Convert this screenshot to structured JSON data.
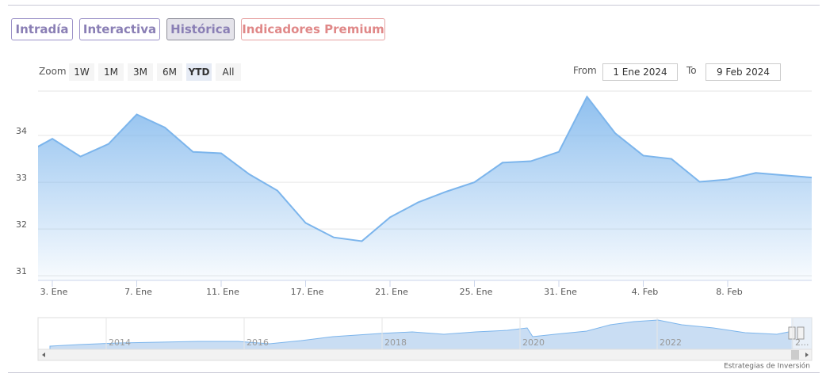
{
  "tabs": [
    "Intradía",
    "Interactiva",
    "Histórica",
    "Indicadores Premium"
  ],
  "zoom": {
    "label": "Zoom",
    "buttons": [
      "1W",
      "1M",
      "3M",
      "6M",
      "YTD",
      "All"
    ]
  },
  "range": {
    "from_label": "From",
    "from": "1 Ene 2024",
    "to_label": "To",
    "to": "9 Feb 2024"
  },
  "chart_data": {
    "type": "line",
    "categories": [
      null,
      "3. Ene",
      null,
      null,
      "7. Ene",
      null,
      null,
      "11. Ene",
      null,
      null,
      "17. Ene",
      null,
      null,
      "21. Ene",
      null,
      null,
      "25. Ene",
      null,
      null,
      "31. Ene",
      null,
      null,
      "4. Feb",
      null,
      null,
      "8. Feb",
      null,
      null,
      null
    ],
    "series": [
      {
        "color": "#7cb5ec",
        "values": [
          33.6,
          33.93,
          33.55,
          33.82,
          34.45,
          34.17,
          33.65,
          33.62,
          33.17,
          32.82,
          32.13,
          31.82,
          31.74,
          32.25,
          32.57,
          32.8,
          33.0,
          33.42,
          33.45,
          33.65,
          34.83,
          34.05,
          33.57,
          33.5,
          33.01,
          33.06,
          33.2,
          33.15,
          33.1
        ]
      }
    ],
    "ylim": [
      30.9,
      34.95
    ],
    "yticks": [
      31,
      32,
      33,
      34
    ],
    "grid": true
  },
  "navigator": {
    "labels": [
      "2014",
      "2016",
      "2018",
      "2020",
      "2022",
      "2..."
    ]
  },
  "credit": "Estrategias de Inversión"
}
